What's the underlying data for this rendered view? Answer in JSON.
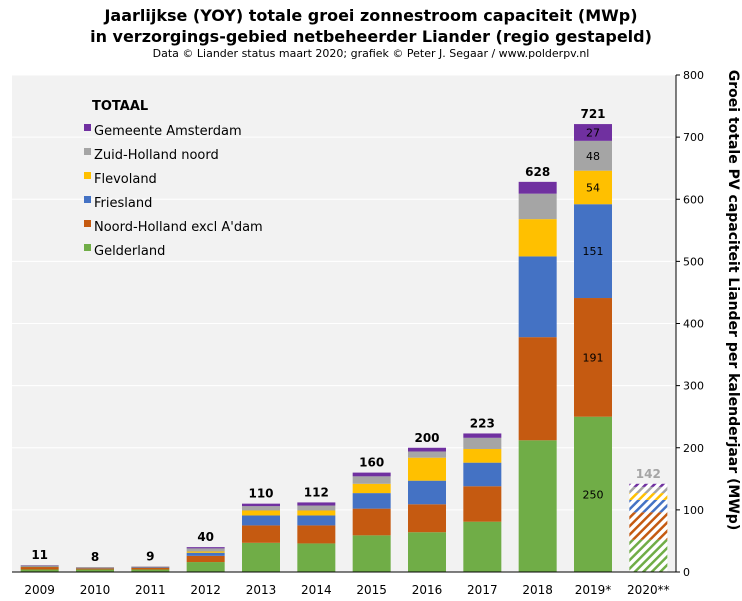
{
  "title_line1": "Jaarlijkse (YOY) totale groei zonnestroom capaciteit (MWp)",
  "title_line2": "in verzorgings-gebied netbeheerder Liander (regio gestapeld)",
  "subtitle": "Data © Liander status maart 2020; grafiek © Peter J. Segaar / www.polderpv.nl",
  "colors": {
    "Gelderland": "#70ad47",
    "Noord-Holland excl A'dam": "#c55a11",
    "Friesland": "#4472c4",
    "Flevoland": "#ffc000",
    "Zuid-Holland noord": "#a5a5a5",
    "Gemeente Amsterdam": "#7030a0",
    "plot_bg": "#f2f2f2",
    "grid": "#ffffff",
    "projection_total_label": "#a5a5a5"
  },
  "chart_data": {
    "type": "bar",
    "stacked": true,
    "categories": [
      "2009",
      "2010",
      "2011",
      "2012",
      "2013",
      "2014",
      "2015",
      "2016",
      "2017",
      "2018",
      "2019*",
      "2020**"
    ],
    "totals": [
      11,
      8,
      9,
      40,
      110,
      112,
      160,
      200,
      223,
      628,
      721,
      142
    ],
    "series": [
      {
        "name": "Gelderland",
        "values": [
          4,
          4,
          4,
          16,
          47,
          46,
          59,
          64,
          81,
          212,
          250,
          52
        ],
        "labels": [
          null,
          null,
          null,
          null,
          null,
          null,
          null,
          null,
          null,
          null,
          "250",
          null
        ]
      },
      {
        "name": "Noord-Holland excl A'dam",
        "values": [
          4,
          2,
          3,
          10,
          28,
          29,
          43,
          45,
          57,
          166,
          191,
          44
        ],
        "labels": [
          null,
          null,
          null,
          null,
          null,
          null,
          null,
          null,
          null,
          null,
          "191",
          null
        ]
      },
      {
        "name": "Friesland",
        "values": [
          1,
          1,
          1,
          5,
          16,
          16,
          25,
          38,
          38,
          130,
          151,
          20
        ],
        "labels": [
          null,
          null,
          null,
          null,
          null,
          null,
          null,
          null,
          null,
          null,
          "151",
          null
        ]
      },
      {
        "name": "Flevoland",
        "values": [
          0.5,
          0.3,
          0.3,
          2,
          8,
          8,
          15,
          37,
          22,
          60,
          54,
          11
        ],
        "labels": [
          null,
          null,
          null,
          null,
          null,
          null,
          null,
          null,
          null,
          null,
          "54",
          null
        ]
      },
      {
        "name": "Zuid-Holland noord",
        "values": [
          1,
          0.5,
          0.5,
          5,
          7,
          8,
          12,
          10,
          18,
          41,
          48,
          10
        ],
        "labels": [
          null,
          null,
          null,
          null,
          null,
          null,
          null,
          null,
          null,
          null,
          "48",
          null
        ]
      },
      {
        "name": "Gemeente Amsterdam",
        "values": [
          0.5,
          0.2,
          0.2,
          2,
          4,
          5,
          6,
          6,
          7,
          19,
          27,
          5
        ],
        "labels": [
          null,
          null,
          null,
          null,
          null,
          null,
          null,
          null,
          null,
          null,
          "27",
          null
        ]
      }
    ],
    "hatched_categories": [
      "2020**"
    ],
    "legend_title": "TOTAAL",
    "legend_order": [
      "Gemeente Amsterdam",
      "Zuid-Holland noord",
      "Flevoland",
      "Friesland",
      "Noord-Holland excl A'dam",
      "Gelderland"
    ],
    "legend_position": "top-left",
    "ylabel": "Groei totale PV capaciteit Liander per kalenderjaar (MWp)",
    "y_axis_side": "right",
    "ylim": [
      0,
      800
    ],
    "yticks": [
      0,
      100,
      200,
      300,
      400,
      500,
      600,
      700,
      800
    ],
    "grid": true
  }
}
